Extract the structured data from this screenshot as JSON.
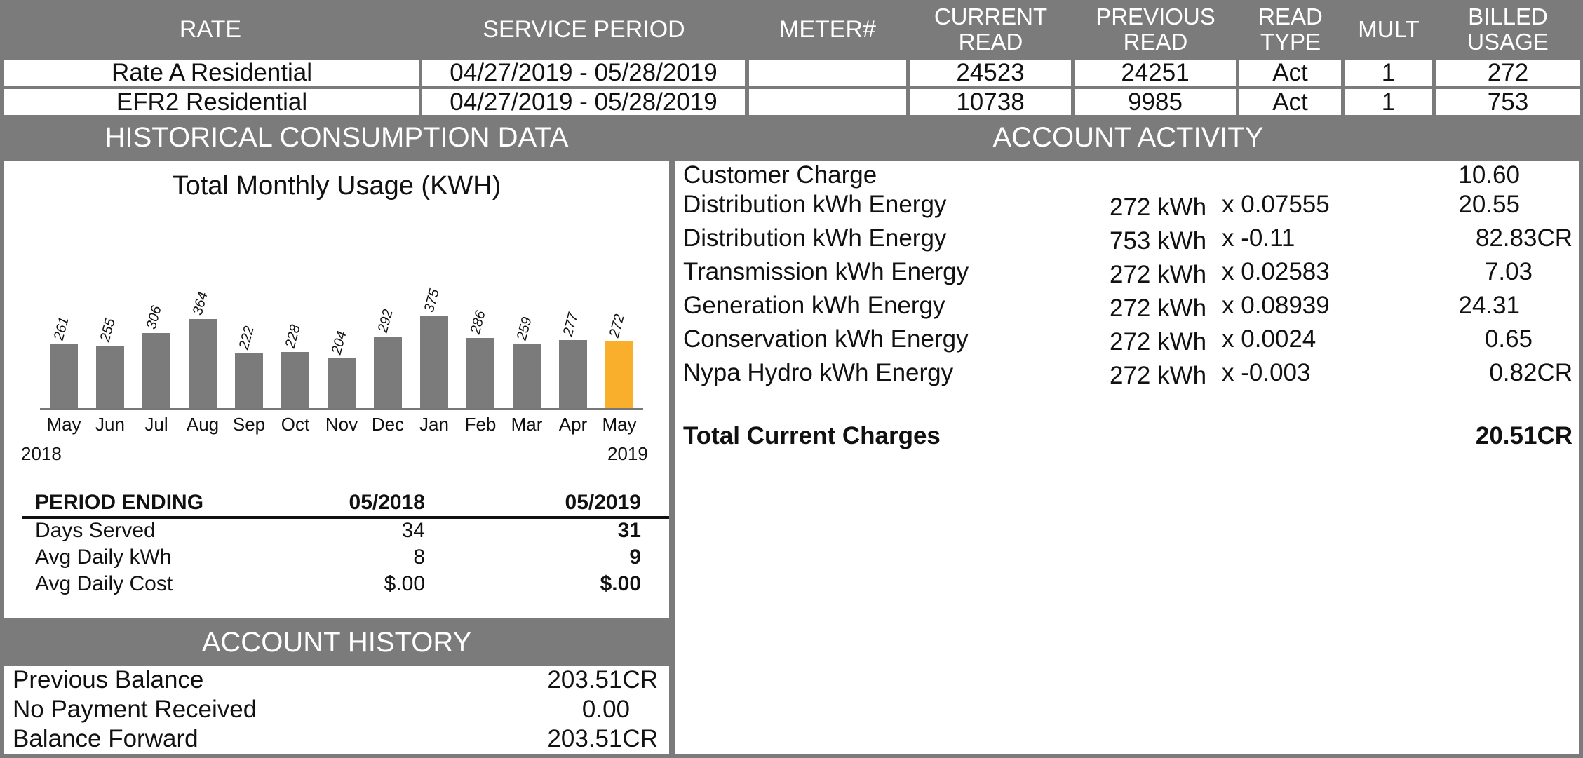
{
  "meter_table": {
    "headers": {
      "rate": [
        "RATE"
      ],
      "service_period": [
        "SERVICE PERIOD"
      ],
      "meter": [
        "METER#"
      ],
      "current_read": [
        "CURRENT",
        "READ"
      ],
      "previous_read": [
        "PREVIOUS",
        "READ"
      ],
      "read_type": [
        "READ",
        "TYPE"
      ],
      "mult": [
        "MULT"
      ],
      "billed_usage": [
        "BILLED",
        "USAGE"
      ]
    },
    "rows": [
      {
        "rate": "Rate A Residential",
        "service_period": "04/27/2019 - 05/28/2019",
        "meter": "",
        "current_read": "24523",
        "previous_read": "24251",
        "read_type": "Act",
        "mult": "1",
        "billed_usage": "272"
      },
      {
        "rate": "EFR2 Residential",
        "service_period": "04/27/2019 - 05/28/2019",
        "meter": "",
        "current_read": "10738",
        "previous_read": "9985",
        "read_type": "Act",
        "mult": "1",
        "billed_usage": "753"
      }
    ]
  },
  "historical": {
    "band_title": "HISTORICAL CONSUMPTION DATA",
    "year_start": "2018",
    "year_end": "2019",
    "summary": {
      "header": {
        "label": "PERIOD ENDING",
        "col1": "05/2018",
        "col2": "05/2019"
      },
      "rows": [
        {
          "label": "Days Served",
          "col1": "34",
          "col2": "31"
        },
        {
          "label": "Avg Daily kWh",
          "col1": "8",
          "col2": "9"
        },
        {
          "label": "Avg Daily Cost",
          "col1": "$.00",
          "col2": "$.00"
        }
      ]
    }
  },
  "chart_data": {
    "type": "bar",
    "title": "Total Monthly Usage (KWH)",
    "categories": [
      "May",
      "Jun",
      "Jul",
      "Aug",
      "Sep",
      "Oct",
      "Nov",
      "Dec",
      "Jan",
      "Feb",
      "Mar",
      "Apr",
      "May"
    ],
    "values": [
      261,
      255,
      306,
      364,
      222,
      228,
      204,
      292,
      375,
      286,
      259,
      277,
      272
    ],
    "highlight_index": 12,
    "bar_color": "#7b7b7b",
    "highlight_color": "#f9ae2c",
    "ylim": [
      0,
      400
    ]
  },
  "account_history": {
    "band_title": "ACCOUNT HISTORY",
    "rows": [
      {
        "label": "Previous Balance",
        "amount": "203.51CR"
      },
      {
        "label": "No Payment Received",
        "amount": "0.00"
      },
      {
        "label": "Balance Forward",
        "amount": "203.51CR"
      }
    ]
  },
  "account_activity": {
    "band_title": "ACCOUNT ACTIVITY",
    "lines": [
      {
        "label": "Customer Charge",
        "usage": "",
        "rate": "",
        "amount": "10.60"
      },
      {
        "label": "Distribution kWh Energy",
        "usage": "272 kWh",
        "rate": "x 0.07555",
        "amount": "20.55"
      },
      {
        "label": "Distribution kWh Energy",
        "usage": "753 kWh",
        "rate": "x -0.11",
        "amount": "82.83CR"
      },
      {
        "label": "Transmission kWh Energy",
        "usage": "272 kWh",
        "rate": "x 0.02583",
        "amount": "7.03"
      },
      {
        "label": "Generation kWh Energy",
        "usage": "272 kWh",
        "rate": "x 0.08939",
        "amount": "24.31"
      },
      {
        "label": "Conservation kWh Energy",
        "usage": "272 kWh",
        "rate": "x 0.0024",
        "amount": "0.65"
      },
      {
        "label": "Nypa Hydro kWh Energy",
        "usage": "272 kWh",
        "rate": "x -0.003",
        "amount": "0.82CR"
      }
    ],
    "total": {
      "label": "Total Current Charges",
      "amount": "20.51CR"
    }
  }
}
